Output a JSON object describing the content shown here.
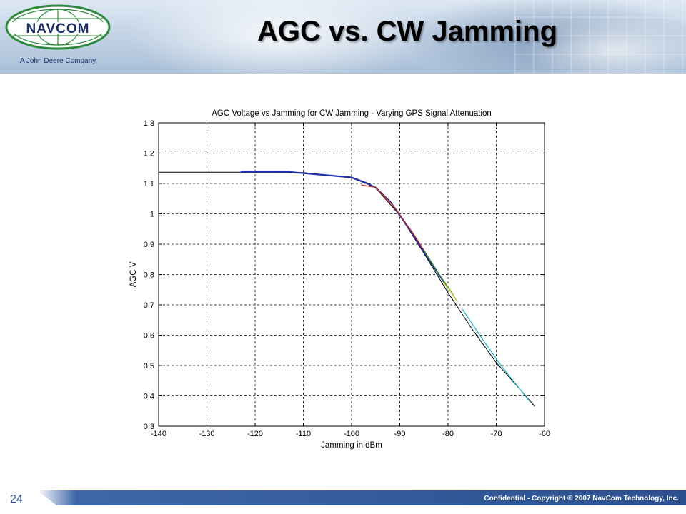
{
  "slide": {
    "title": "AGC vs. CW Jamming",
    "logo_text": "NAVCOM",
    "tagline": "A John Deere Company",
    "footer": "Confidential - Copyright © 2007 NavCom Technology, Inc.",
    "page_number": "24"
  },
  "colors": {
    "logo_green": "#2e8b3e",
    "logo_navy": "#1d2f6a",
    "footer_blue": "#2b4f8e",
    "series_black": "#000000",
    "series_blue": "#1f2fa8",
    "series_red": "#c8301e",
    "series_green": "#3a9a2a",
    "series_yellow": "#b7c41a",
    "series_cyan": "#2ab6c8"
  },
  "chart_data": {
    "type": "line",
    "title": "AGC Voltage vs Jamming for CW Jamming - Varying GPS Signal Attenuation",
    "xlabel": "Jamming in dBm",
    "ylabel": "AGC V",
    "xlim": [
      -140,
      -60
    ],
    "ylim": [
      0.3,
      1.3
    ],
    "xticks": [
      "-140",
      "-130",
      "-120",
      "-110",
      "-100",
      "-90",
      "-80",
      "-70",
      "-60"
    ],
    "yticks": [
      "0.3",
      "0.4",
      "0.5",
      "0.6",
      "0.7",
      "0.8",
      "0.9",
      "1",
      "1.1",
      "1.2",
      "1.3"
    ],
    "grid": true,
    "series": [
      {
        "color": "black",
        "x": [
          -140,
          -130,
          -120,
          -110,
          -105,
          -100,
          -97,
          -95,
          -90,
          -85,
          -80,
          -75,
          -70,
          -65,
          -62
        ],
        "y": [
          1.137,
          1.137,
          1.137,
          1.136,
          1.128,
          1.118,
          1.1,
          1.085,
          0.995,
          0.87,
          0.74,
          0.62,
          0.51,
          0.42,
          0.365
        ]
      },
      {
        "color": "blue",
        "x": [
          -123,
          -113,
          -108,
          -100,
          -97,
          -95,
          -92,
          -88,
          -84,
          -80
        ],
        "y": [
          1.138,
          1.138,
          1.131,
          1.12,
          1.102,
          1.086,
          1.04,
          0.95,
          0.85,
          0.755
        ]
      },
      {
        "color": "red",
        "x": [
          -98,
          -95,
          -91,
          -87,
          -84
        ],
        "y": [
          1.095,
          1.087,
          1.02,
          0.93,
          0.855
        ]
      },
      {
        "color": "green",
        "x": [
          -85,
          -82,
          -79
        ],
        "y": [
          0.88,
          0.805,
          0.735
        ]
      },
      {
        "color": "yellow",
        "x": [
          -81,
          -79.5,
          -78
        ],
        "y": [
          0.775,
          0.745,
          0.71
        ]
      },
      {
        "color": "cyan",
        "x": [
          -77,
          -73,
          -69,
          -66,
          -63
        ],
        "y": [
          0.685,
          0.59,
          0.5,
          0.44,
          0.38
        ]
      }
    ]
  }
}
